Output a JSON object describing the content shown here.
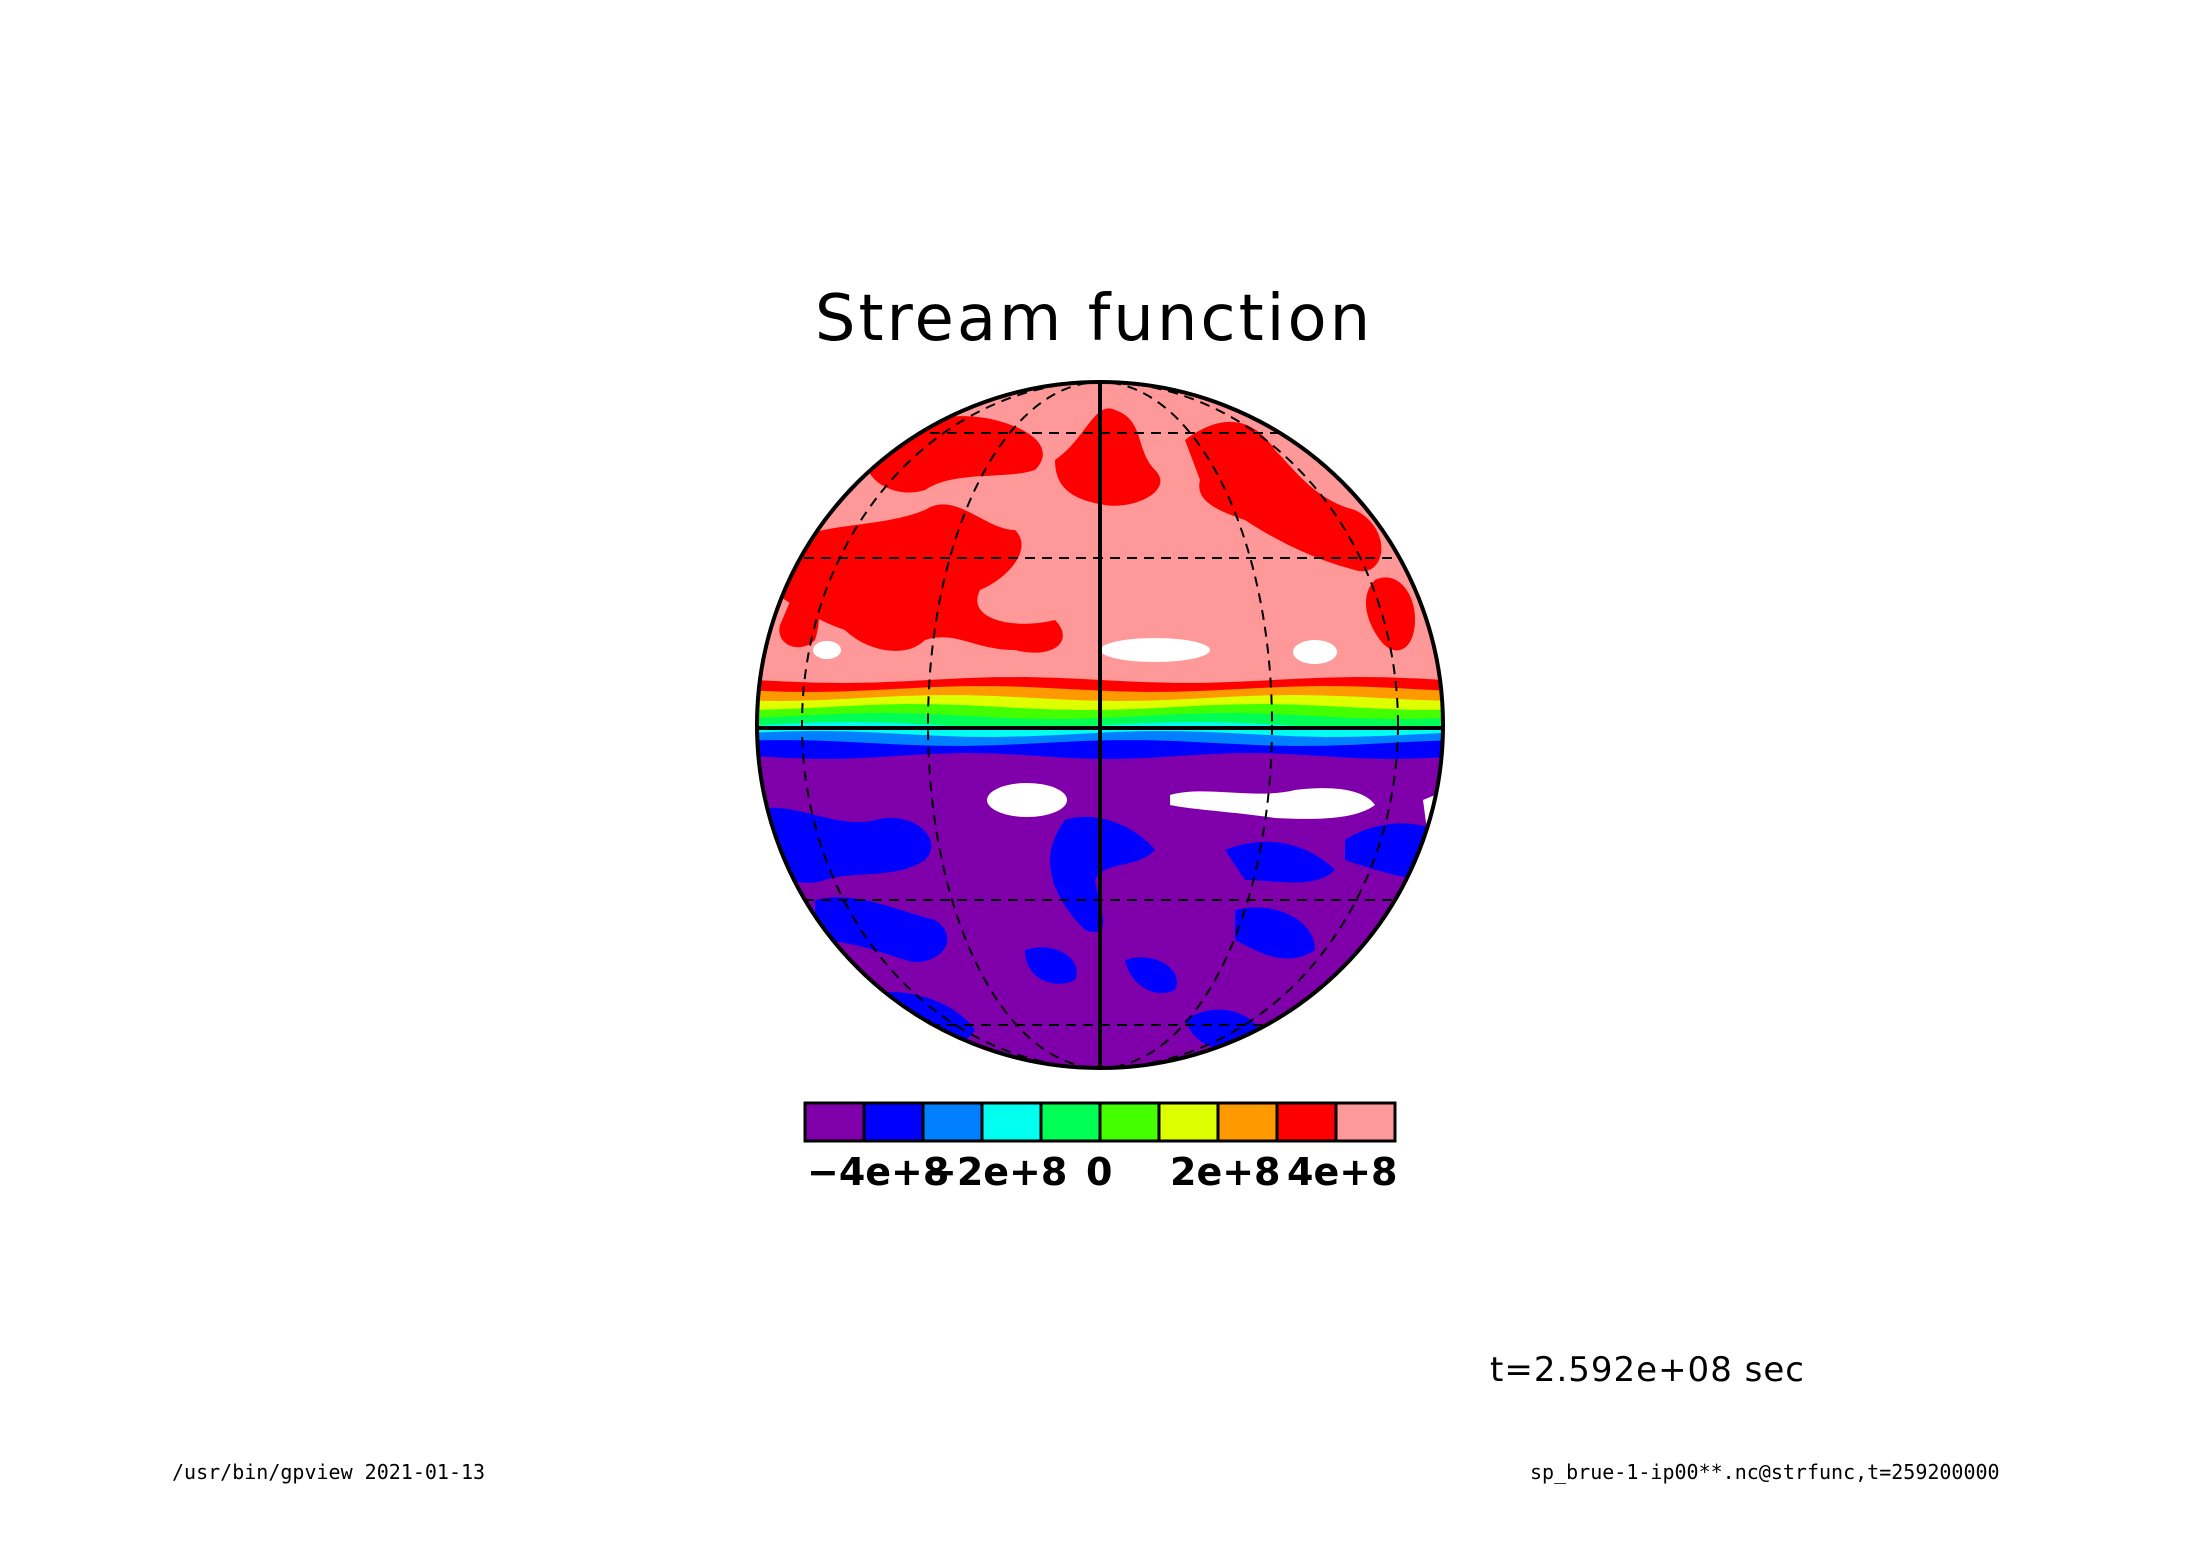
{
  "chart_data": {
    "type": "heatmap",
    "projection": "orthographic",
    "title": "Stream function",
    "colorbar": {
      "colors": [
        "#7f00aa",
        "#0000ff",
        "#0080ff",
        "#00ffee",
        "#00ff55",
        "#44ff00",
        "#ddff00",
        "#ff9900",
        "#ff0000",
        "#ff9999"
      ],
      "tick_labels": [
        "−4e+8",
        "−2e+8",
        "0",
        "2e+8",
        "4e+8"
      ],
      "tick_values": [
        -400000000.0,
        -200000000.0,
        0,
        200000000.0,
        400000000.0
      ]
    },
    "equator_bands": [
      "#ff0000",
      "#ff9900",
      "#ddff00",
      "#44ff00",
      "#00ff55",
      "#00ffee",
      "#0080ff",
      "#0000ff"
    ],
    "north_background": "#ff9999",
    "south_background": "#7f00aa",
    "annotation_time": "t=2.592e+08 sec"
  },
  "footer": {
    "left": "/usr/bin/gpview  2021-01-13",
    "right": "sp_brue-1-ip00**.nc@strfunc,t=259200000"
  }
}
